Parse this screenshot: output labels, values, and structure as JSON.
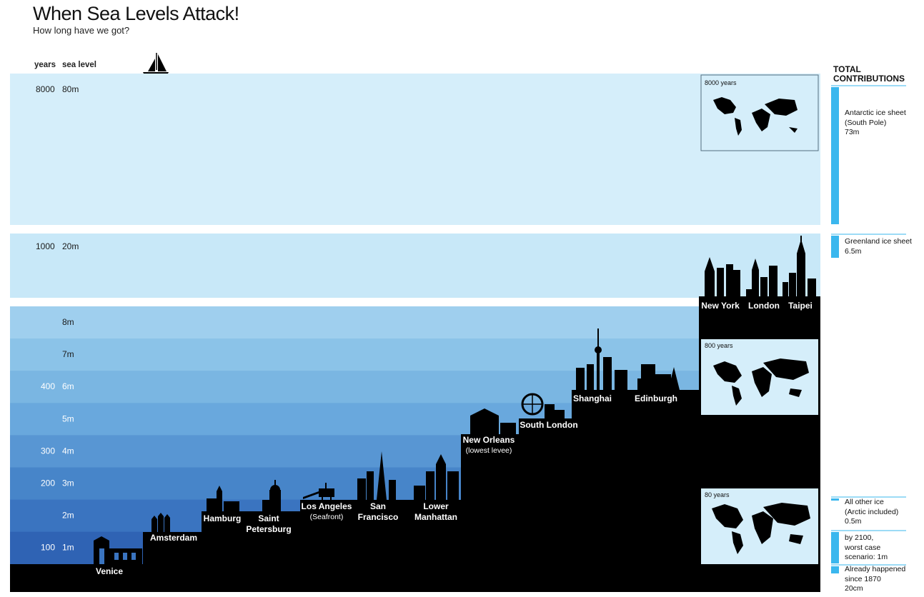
{
  "title": "When Sea Levels Attack!",
  "subtitle": "How long have we got?",
  "headers": {
    "years": "years",
    "sea_level": "sea level"
  },
  "upper_bands": [
    {
      "years": "8000",
      "sea": "80m"
    },
    {
      "years": "1000",
      "sea": "20m"
    }
  ],
  "levels": [
    {
      "sea": "8m",
      "years": ""
    },
    {
      "sea": "7m",
      "years": ""
    },
    {
      "sea": "6m",
      "years": "400"
    },
    {
      "sea": "5m",
      "years": ""
    },
    {
      "sea": "4m",
      "years": "300"
    },
    {
      "sea": "3m",
      "years": "200"
    },
    {
      "sea": "2m",
      "years": ""
    },
    {
      "sea": "1m",
      "years": "100"
    }
  ],
  "band_colors": [
    "#9fcfee",
    "#8bc3e8",
    "#7ab6e2",
    "#69a8dd",
    "#5896d3",
    "#4785c9",
    "#3a74c0",
    "#2f63b4"
  ],
  "cities": [
    {
      "name": "Venice",
      "sub": "",
      "level_m": 0
    },
    {
      "name": "Amsterdam",
      "sub": "",
      "level_m": 1
    },
    {
      "name": "Hamburg",
      "sub": "",
      "level_m": 1.6
    },
    {
      "name": "Saint Petersburg",
      "sub": "",
      "level_m": 1.6
    },
    {
      "name": "Los Angeles",
      "sub": "(Seafront)",
      "level_m": 2
    },
    {
      "name": "San Francisco",
      "sub": "",
      "level_m": 2
    },
    {
      "name": "Lower Manhattan",
      "sub": "",
      "level_m": 2
    },
    {
      "name": "New Orleans",
      "sub": "(lowest levee)",
      "level_m": 4.5
    },
    {
      "name": "South London",
      "sub": "",
      "level_m": 5.5
    },
    {
      "name": "Shanghai",
      "sub": "",
      "level_m": 6.5
    },
    {
      "name": "Edinburgh",
      "sub": "",
      "level_m": 6.5
    },
    {
      "name": "New York",
      "sub": "",
      "level_m": 8.5
    },
    {
      "name": "London",
      "sub": "",
      "level_m": 8.5
    },
    {
      "name": "Taipei",
      "sub": "",
      "level_m": 8.5
    }
  ],
  "maps": [
    {
      "label": "8000 years"
    },
    {
      "label": "800 years"
    },
    {
      "label": "80 years"
    }
  ],
  "contributions": {
    "title_line1": "TOTAL",
    "title_line2": "CONTRIBUTIONS",
    "items": [
      {
        "lines": [
          "Antarctic ice sheet",
          "(South Pole)",
          "73m"
        ],
        "value_m": 73
      },
      {
        "lines": [
          "Greenland ice sheet",
          "6.5m"
        ],
        "value_m": 6.5
      },
      {
        "lines": [
          "All other ice",
          "(Arctic included)",
          "0.5m"
        ],
        "value_m": 0.5
      },
      {
        "lines": [
          "by 2100,",
          "worst case",
          "scenario: 1m"
        ],
        "value_m": 1
      },
      {
        "lines": [
          "Already happened",
          "since 1870",
          "20cm"
        ],
        "value_m": 0.2
      }
    ]
  },
  "chart_data": {
    "type": "area",
    "title": "When Sea Levels Attack!",
    "subtitle": "How long have we got?",
    "xlabel": "years",
    "ylabel": "sea level",
    "points": [
      {
        "years": 100,
        "sea_level_m": 1
      },
      {
        "years": 200,
        "sea_level_m": 3
      },
      {
        "years": 300,
        "sea_level_m": 4
      },
      {
        "years": 400,
        "sea_level_m": 6
      },
      {
        "years": 1000,
        "sea_level_m": 20
      },
      {
        "years": 8000,
        "sea_level_m": 80
      }
    ]
  },
  "colors": {
    "sky_band": "#d5eefa",
    "water_20m": "#c8e8f8",
    "accent": "#3ab7ee",
    "ground": "#000000"
  }
}
